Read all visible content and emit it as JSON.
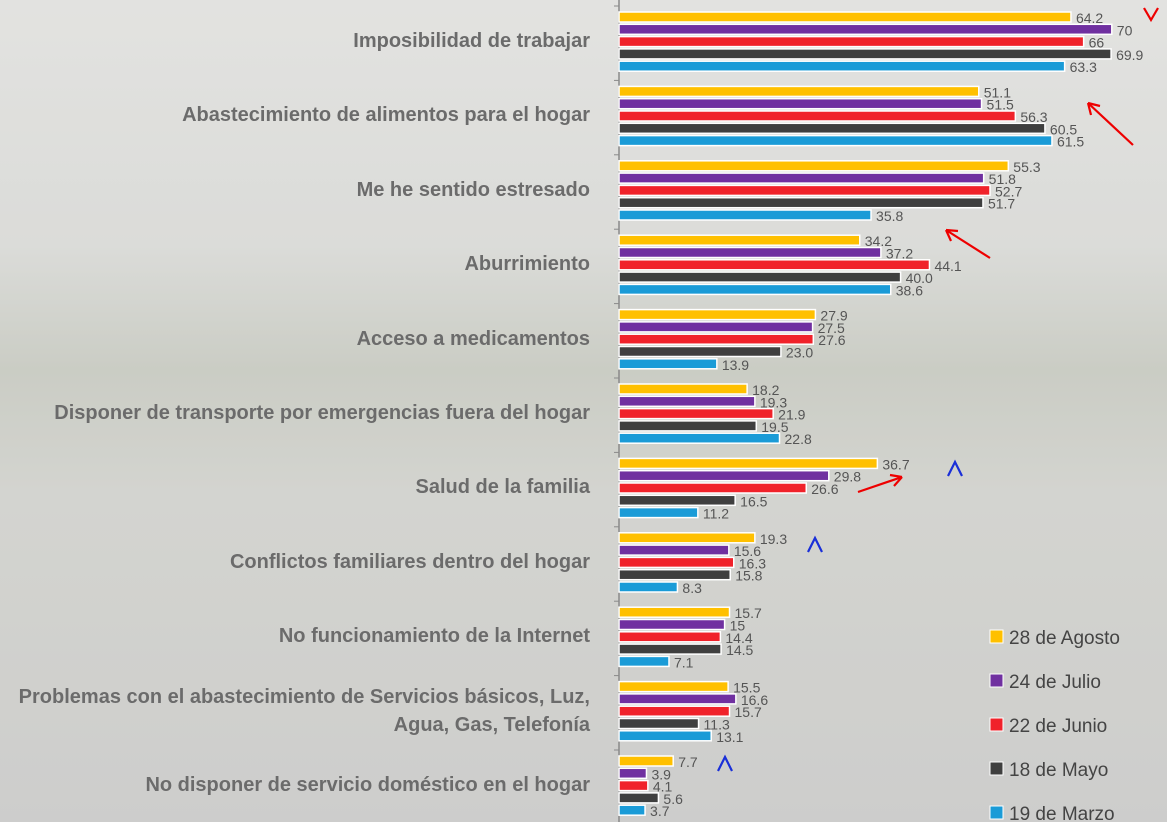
{
  "chart_data": {
    "type": "hbar",
    "categories": [
      "Imposibilidad de trabajar",
      "Abastecimiento de alimentos para el hogar",
      "Me he sentido estresado",
      "Aburrimiento",
      "Acceso a medicamentos",
      "Disponer de transporte por emergencias fuera del hogar",
      "Salud de la familia",
      "Conflictos familiares dentro del hogar",
      "No funcionamiento de la Internet",
      "Problemas con el abastecimiento de Servicios básicos, Luz, Agua, Gas, Telefonía",
      "No disponer de servicio doméstico en el hogar"
    ],
    "series": [
      {
        "name": "28 de Agosto",
        "color": "#ffc000",
        "values": [
          64.2,
          51.1,
          55.3,
          34.2,
          27.9,
          18.2,
          36.7,
          19.3,
          15.7,
          15.5,
          7.7
        ],
        "value_labels": [
          "64.2",
          "51.1",
          "55.3",
          "34.2",
          "27.9",
          "18.2",
          "36.7",
          "19.3",
          "15.7",
          "15.5",
          "7.7"
        ]
      },
      {
        "name": "24 de Julio",
        "color": "#7030a0",
        "values": [
          70,
          51.5,
          51.8,
          37.2,
          27.5,
          19.3,
          29.8,
          15.6,
          15,
          16.6,
          3.9
        ],
        "value_labels": [
          "70",
          "51.5",
          "51.8",
          "37.2",
          "27.5",
          "19.3",
          "29.8",
          "15.6",
          "15",
          "16.6",
          "3.9"
        ]
      },
      {
        "name": "22 de Junio",
        "color": "#f0222a",
        "values": [
          66,
          56.3,
          52.7,
          44.1,
          27.6,
          21.9,
          26.6,
          16.3,
          14.4,
          15.7,
          4.1
        ],
        "value_labels": [
          "66",
          "56.3",
          "52.7",
          "44.1",
          "27.6",
          "21.9",
          "26.6",
          "16.3",
          "14.4",
          "15.7",
          "4.1"
        ]
      },
      {
        "name": "18 de Mayo",
        "color": "#3f3f3f",
        "values": [
          69.9,
          60.5,
          51.7,
          40.0,
          23.0,
          19.5,
          16.5,
          15.8,
          14.5,
          11.3,
          5.6
        ],
        "value_labels": [
          "69.9",
          "60.5",
          "51.7",
          "40.0",
          "23.0",
          "19.5",
          "16.5",
          "15.8",
          "14.5",
          "11.3",
          "5.6"
        ]
      },
      {
        "name": "19 de Marzo",
        "color": "#1a9bd7",
        "values": [
          63.3,
          61.5,
          35.8,
          38.6,
          13.9,
          22.8,
          11.2,
          8.3,
          7.1,
          13.1,
          3.7
        ],
        "value_labels": [
          "63.3",
          "61.5",
          "35.8",
          "38.6",
          "13.9",
          "22.8",
          "11.2",
          "8.3",
          "7.1",
          "13.1",
          "3.7"
        ]
      }
    ],
    "xlim": [
      0,
      78
    ],
    "legend": "bottom-right"
  }
}
